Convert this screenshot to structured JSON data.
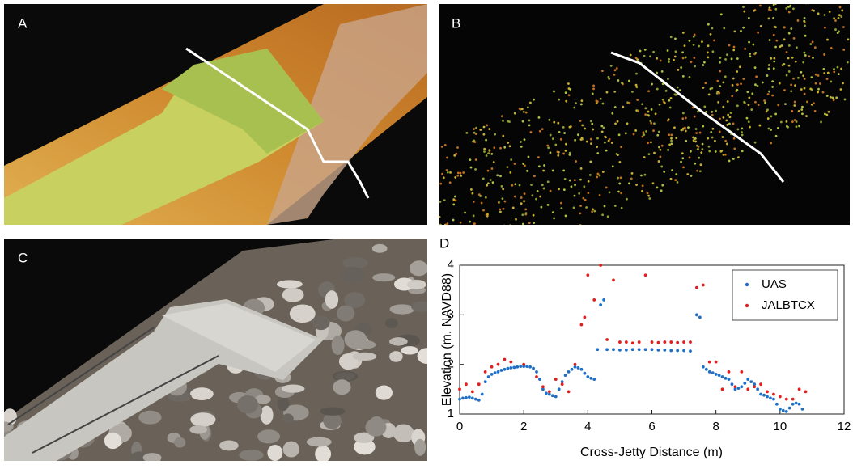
{
  "panel_labels": [
    "A",
    "B",
    "C",
    "D"
  ],
  "chart_data": {
    "type": "scatter",
    "xlabel": "Cross-Jetty Distance (m)",
    "ylabel": "Elevation (m, NAVD88)",
    "xlim": [
      0,
      12
    ],
    "xticks": [
      0,
      2,
      4,
      6,
      8,
      10,
      12
    ],
    "ylim": [
      1,
      4
    ],
    "yticks": [
      1,
      2,
      3,
      4
    ],
    "legend": "upper right",
    "series": [
      {
        "name": "UAS",
        "color": "#1f6fc5",
        "x": [
          0,
          0.1,
          0.2,
          0.3,
          0.4,
          0.5,
          0.6,
          0.7,
          0.8,
          0.9,
          1.0,
          1.1,
          1.2,
          1.3,
          1.4,
          1.5,
          1.6,
          1.7,
          1.8,
          1.9,
          2.0,
          2.1,
          2.2,
          2.3,
          2.4,
          2.5,
          2.6,
          2.7,
          2.8,
          2.9,
          3.0,
          3.1,
          3.2,
          3.3,
          3.4,
          3.5,
          3.6,
          3.7,
          3.8,
          3.9,
          4.0,
          4.1,
          4.2,
          4.3,
          4.4,
          4.5,
          4.6,
          4.8,
          5.0,
          5.2,
          5.4,
          5.6,
          5.8,
          6.0,
          6.2,
          6.4,
          6.6,
          6.8,
          7.0,
          7.2,
          7.4,
          7.5,
          7.6,
          7.7,
          7.8,
          7.9,
          8.0,
          8.1,
          8.2,
          8.3,
          8.4,
          8.5,
          8.6,
          8.7,
          8.8,
          8.9,
          9.0,
          9.1,
          9.2,
          9.3,
          9.4,
          9.5,
          9.6,
          9.7,
          9.8,
          9.9,
          10.0,
          10.1,
          10.2,
          10.3,
          10.4,
          10.5,
          10.6,
          10.7
        ],
        "values": [
          1.3,
          1.32,
          1.33,
          1.34,
          1.32,
          1.3,
          1.28,
          1.4,
          1.65,
          1.75,
          1.8,
          1.83,
          1.85,
          1.88,
          1.9,
          1.92,
          1.93,
          1.94,
          1.95,
          1.96,
          1.96,
          1.96,
          1.95,
          1.92,
          1.85,
          1.7,
          1.5,
          1.42,
          1.4,
          1.37,
          1.35,
          1.5,
          1.65,
          1.78,
          1.85,
          1.9,
          1.95,
          1.93,
          1.9,
          1.82,
          1.75,
          1.72,
          1.7,
          2.3,
          3.2,
          3.3,
          2.3,
          2.3,
          2.29,
          2.29,
          2.3,
          2.3,
          2.3,
          2.3,
          2.29,
          2.29,
          2.28,
          2.28,
          2.28,
          2.27,
          3.0,
          2.95,
          1.95,
          1.9,
          1.85,
          1.83,
          1.8,
          1.78,
          1.75,
          1.72,
          1.7,
          1.6,
          1.5,
          1.52,
          1.55,
          1.62,
          1.7,
          1.65,
          1.6,
          1.5,
          1.4,
          1.38,
          1.35,
          1.32,
          1.3,
          1.2,
          1.1,
          1.07,
          1.05,
          1.12,
          1.2,
          1.22,
          1.2,
          1.1
        ]
      },
      {
        "name": "JALBTCX",
        "color": "#e02020",
        "x": [
          0,
          0.2,
          0.4,
          0.6,
          0.8,
          1.0,
          1.2,
          1.4,
          1.6,
          2.0,
          2.4,
          2.6,
          2.8,
          3.0,
          3.2,
          3.4,
          3.6,
          3.8,
          3.9,
          4.0,
          4.2,
          4.4,
          4.6,
          4.8,
          5.0,
          5.2,
          5.4,
          5.6,
          5.8,
          6.0,
          6.2,
          6.4,
          6.6,
          6.8,
          7.0,
          7.2,
          7.4,
          7.6,
          7.8,
          8.0,
          8.2,
          8.4,
          8.6,
          8.8,
          9.0,
          9.2,
          9.4,
          9.6,
          9.8,
          10.0,
          10.2,
          10.4,
          10.6,
          10.8
        ],
        "values": [
          1.5,
          1.6,
          1.45,
          1.6,
          1.85,
          1.95,
          2.0,
          2.1,
          2.05,
          2.0,
          1.75,
          1.55,
          1.45,
          1.7,
          1.6,
          1.45,
          2.0,
          2.8,
          2.95,
          3.8,
          3.3,
          4.0,
          2.5,
          3.7,
          2.45,
          2.45,
          2.43,
          2.45,
          3.8,
          2.45,
          2.44,
          2.45,
          2.45,
          2.44,
          2.45,
          2.45,
          3.55,
          3.6,
          2.05,
          2.05,
          1.5,
          1.85,
          1.55,
          1.85,
          1.5,
          1.55,
          1.6,
          1.45,
          1.4,
          1.35,
          1.3,
          1.3,
          1.5,
          1.45
        ]
      }
    ]
  }
}
